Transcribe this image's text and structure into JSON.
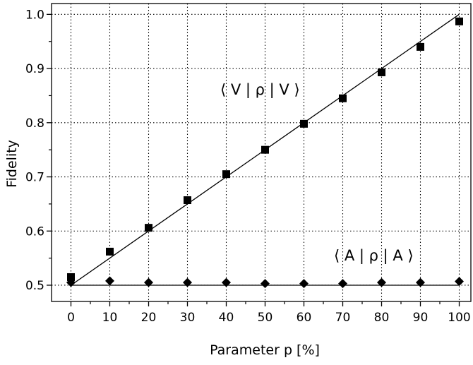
{
  "chart_data": {
    "type": "scatter",
    "xlabel": "Parameter p [%]",
    "ylabel": "Fidelity",
    "xlim": [
      -5,
      103
    ],
    "ylim": [
      0.47,
      1.02
    ],
    "xticks": [
      0,
      10,
      20,
      30,
      40,
      50,
      60,
      70,
      80,
      90,
      100
    ],
    "yticks": [
      0.5,
      0.6,
      0.7,
      0.8,
      0.9,
      1.0
    ],
    "ytick_labels": [
      "0.5",
      "0.6",
      "0.7",
      "0.8",
      "0.9",
      "1.0"
    ],
    "grid": true,
    "grid_style": "dotted",
    "series": [
      {
        "name": "⟨ V | ρ | V ⟩",
        "marker": "square",
        "x": [
          0,
          10,
          20,
          30,
          40,
          50,
          60,
          70,
          80,
          90,
          100
        ],
        "values": [
          0.515,
          0.562,
          0.606,
          0.657,
          0.705,
          0.75,
          0.798,
          0.845,
          0.893,
          0.94,
          0.987
        ]
      },
      {
        "name": "⟨ A | ρ | A ⟩",
        "marker": "diamond",
        "x": [
          0,
          10,
          20,
          30,
          40,
          50,
          60,
          70,
          80,
          90,
          100
        ],
        "values": [
          0.505,
          0.508,
          0.505,
          0.505,
          0.505,
          0.503,
          0.503,
          0.503,
          0.505,
          0.505,
          0.507
        ]
      }
    ],
    "lines": [
      {
        "x": [
          0,
          100
        ],
        "values": [
          0.5,
          1.0
        ]
      },
      {
        "x": [
          0,
          100
        ],
        "values": [
          0.5,
          0.5
        ]
      }
    ],
    "annotations": [
      "⟨ V | ρ | V ⟩",
      "⟨ A | ρ | A ⟩"
    ]
  }
}
